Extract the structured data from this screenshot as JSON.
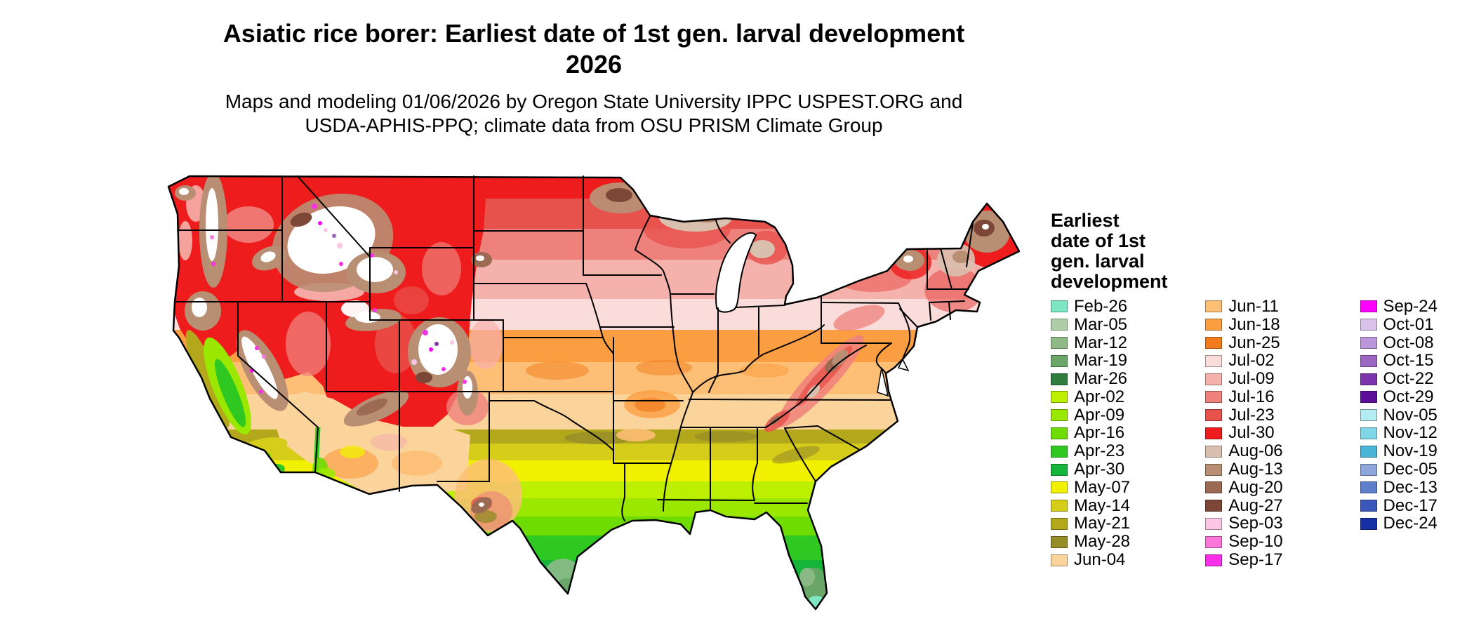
{
  "title": {
    "line1": "Asiatic rice borer: Earliest date of 1st gen. larval development",
    "line2": "2026"
  },
  "subtitle": {
    "line1": "Maps and modeling 01/06/2026 by Oregon State University IPPC USPEST.ORG and",
    "line2": "USDA-APHIS-PPQ; climate data from OSU PRISM Climate Group"
  },
  "legend": {
    "title_lines": [
      "Earliest",
      "date of 1st",
      "gen. larval",
      "development"
    ],
    "columns": [
      {
        "entries": [
          {
            "label": "Feb-26",
            "color": "#7fe6c3"
          },
          {
            "label": "Mar-05",
            "color": "#aecfa5"
          },
          {
            "label": "Mar-12",
            "color": "#8fba88"
          },
          {
            "label": "Mar-19",
            "color": "#6aa668"
          },
          {
            "label": "Mar-26",
            "color": "#2f7d3f"
          },
          {
            "label": "Apr-02",
            "color": "#bdf000"
          },
          {
            "label": "Apr-09",
            "color": "#9ae800"
          },
          {
            "label": "Apr-16",
            "color": "#6edc00"
          },
          {
            "label": "Apr-23",
            "color": "#2fc822"
          },
          {
            "label": "Apr-30",
            "color": "#15b53c"
          },
          {
            "label": "May-07",
            "color": "#f0f000"
          },
          {
            "label": "May-14",
            "color": "#d6cc1a"
          },
          {
            "label": "May-21",
            "color": "#b3a81c"
          },
          {
            "label": "May-28",
            "color": "#968c28"
          },
          {
            "label": "Jun-04",
            "color": "#fbd49c"
          }
        ]
      },
      {
        "entries": [
          {
            "label": "Jun-11",
            "color": "#fdbe75"
          },
          {
            "label": "Jun-18",
            "color": "#fb9e42"
          },
          {
            "label": "Jun-25",
            "color": "#f27c1c"
          },
          {
            "label": "Jul-02",
            "color": "#fadcdb"
          },
          {
            "label": "Jul-09",
            "color": "#f5b1ac"
          },
          {
            "label": "Jul-16",
            "color": "#ef817c"
          },
          {
            "label": "Jul-23",
            "color": "#e8524d"
          },
          {
            "label": "Jul-30",
            "color": "#ee1c1c"
          },
          {
            "label": "Aug-06",
            "color": "#d9bfae"
          },
          {
            "label": "Aug-13",
            "color": "#b98f74"
          },
          {
            "label": "Aug-20",
            "color": "#9c6a52"
          },
          {
            "label": "Aug-27",
            "color": "#7c4737"
          },
          {
            "label": "Sep-03",
            "color": "#fcc7e6"
          },
          {
            "label": "Sep-10",
            "color": "#fa76d8"
          },
          {
            "label": "Sep-17",
            "color": "#f830e8"
          }
        ]
      },
      {
        "entries": [
          {
            "label": "Sep-24",
            "color": "#ff00ff"
          },
          {
            "label": "Oct-01",
            "color": "#d9c3ea"
          },
          {
            "label": "Oct-08",
            "color": "#bb96d8"
          },
          {
            "label": "Oct-15",
            "color": "#9c67c2"
          },
          {
            "label": "Oct-22",
            "color": "#7c36ab"
          },
          {
            "label": "Oct-29",
            "color": "#5c0f99"
          },
          {
            "label": "Nov-05",
            "color": "#b4ecf2"
          },
          {
            "label": "Nov-12",
            "color": "#7fd6e6"
          },
          {
            "label": "Nov-19",
            "color": "#49b4d6"
          },
          {
            "label": "Dec-05",
            "color": "#8fa6dc"
          },
          {
            "label": "Dec-13",
            "color": "#5f7fcb"
          },
          {
            "label": "Dec-17",
            "color": "#3b57bb"
          },
          {
            "label": "Dec-24",
            "color": "#1730a6"
          }
        ]
      }
    ]
  }
}
